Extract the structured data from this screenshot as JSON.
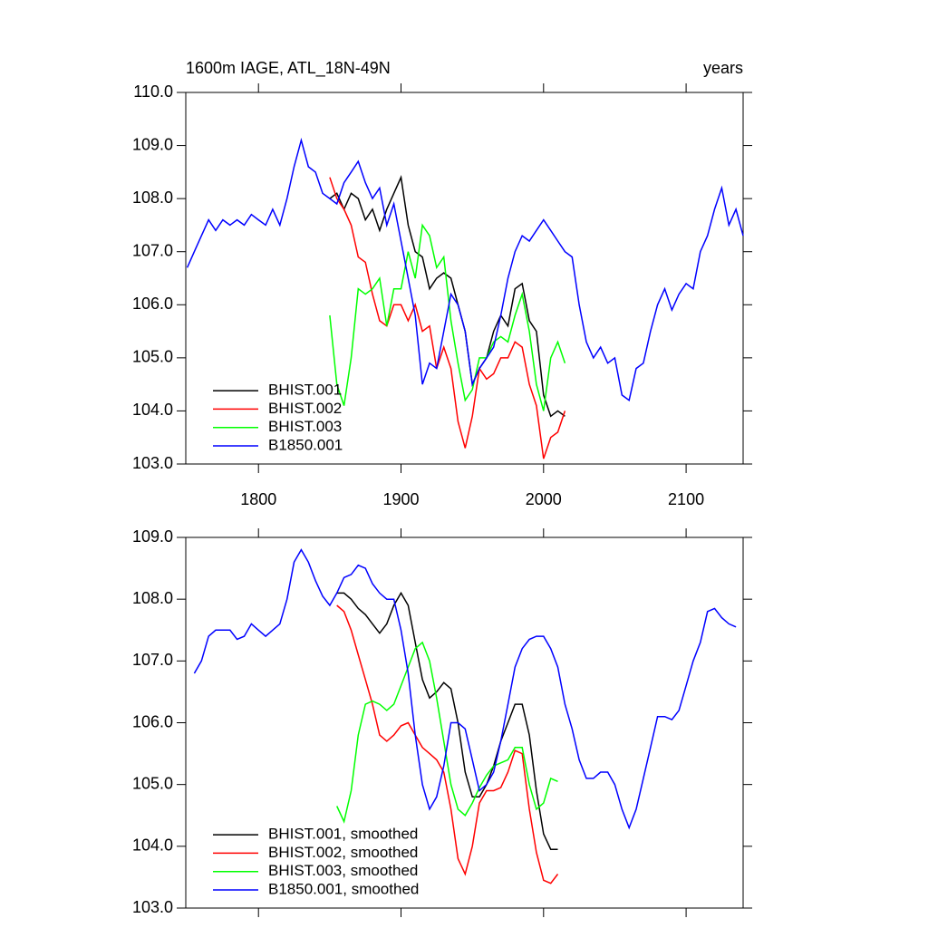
{
  "chart_data": [
    {
      "type": "line",
      "title": "1600m IAGE, ATL_18N-49N",
      "right_title": "years",
      "xlim": [
        1749,
        2140
      ],
      "xticks": [
        1800,
        1900,
        2000,
        2100
      ],
      "show_xtick_labels": true,
      "ylim": [
        103,
        110
      ],
      "yticks": [
        {
          "value": 103,
          "label": "103.0"
        },
        {
          "value": 104,
          "label": "104.0"
        },
        {
          "value": 105,
          "label": "105.0"
        },
        {
          "value": 106,
          "label": "106.0"
        },
        {
          "value": 107,
          "label": "107.0"
        },
        {
          "value": 108,
          "label": "108.0"
        },
        {
          "value": 109,
          "label": "109.0"
        },
        {
          "value": 110,
          "label": "110.0"
        }
      ],
      "legend": "lower left",
      "series": [
        {
          "name": "BHIST.001",
          "color": "#000000",
          "x": [
            1850,
            1855,
            1860,
            1865,
            1870,
            1875,
            1880,
            1885,
            1890,
            1895,
            1900,
            1905,
            1910,
            1915,
            1920,
            1925,
            1930,
            1935,
            1940,
            1945,
            1950,
            1955,
            1960,
            1965,
            1970,
            1975,
            1980,
            1985,
            1990,
            1995,
            2000,
            2005,
            2010,
            2015
          ],
          "values": [
            108.0,
            108.1,
            107.8,
            108.1,
            108.0,
            107.6,
            107.8,
            107.4,
            107.8,
            108.1,
            108.4,
            107.5,
            107.0,
            106.9,
            106.3,
            106.5,
            106.6,
            106.5,
            106.0,
            105.5,
            104.5,
            104.8,
            105.0,
            105.5,
            105.8,
            105.6,
            106.3,
            106.4,
            105.7,
            105.5,
            104.3,
            103.9,
            104.0,
            103.9
          ]
        },
        {
          "name": "BHIST.002",
          "color": "#ff0000",
          "x": [
            1850,
            1855,
            1860,
            1865,
            1870,
            1875,
            1880,
            1885,
            1890,
            1895,
            1900,
            1905,
            1910,
            1915,
            1920,
            1925,
            1930,
            1935,
            1940,
            1945,
            1950,
            1955,
            1960,
            1965,
            1970,
            1975,
            1980,
            1985,
            1990,
            1995,
            2000,
            2005,
            2010,
            2015
          ],
          "values": [
            108.4,
            108.0,
            107.8,
            107.5,
            106.9,
            106.8,
            106.2,
            105.7,
            105.6,
            106.0,
            106.0,
            105.7,
            106.0,
            105.5,
            105.6,
            104.8,
            105.2,
            104.8,
            103.8,
            103.3,
            103.9,
            104.8,
            104.6,
            104.7,
            105.0,
            105.0,
            105.3,
            105.2,
            104.5,
            104.1,
            103.1,
            103.5,
            103.6,
            104.0
          ]
        },
        {
          "name": "BHIST.003",
          "color": "#00ff00",
          "x": [
            1850,
            1855,
            1860,
            1865,
            1870,
            1875,
            1880,
            1885,
            1890,
            1895,
            1900,
            1905,
            1910,
            1915,
            1920,
            1925,
            1930,
            1935,
            1940,
            1945,
            1950,
            1955,
            1960,
            1965,
            1970,
            1975,
            1980,
            1985,
            1990,
            1995,
            2000,
            2005,
            2010,
            2015
          ],
          "values": [
            105.8,
            104.5,
            104.1,
            105.0,
            106.3,
            106.2,
            106.3,
            106.5,
            105.6,
            106.3,
            106.3,
            107.0,
            106.5,
            107.5,
            107.3,
            106.7,
            106.9,
            105.7,
            104.9,
            104.2,
            104.4,
            105.0,
            105.0,
            105.3,
            105.4,
            105.3,
            105.8,
            106.2,
            105.5,
            104.5,
            104.0,
            105.0,
            105.3,
            104.9
          ]
        },
        {
          "name": "B1850.001",
          "color": "#0000ff",
          "x": [
            1750,
            1755,
            1760,
            1765,
            1770,
            1775,
            1780,
            1785,
            1790,
            1795,
            1800,
            1805,
            1810,
            1815,
            1820,
            1825,
            1830,
            1835,
            1840,
            1845,
            1850,
            1855,
            1860,
            1865,
            1870,
            1875,
            1880,
            1885,
            1890,
            1895,
            1900,
            1905,
            1910,
            1915,
            1920,
            1925,
            1930,
            1935,
            1940,
            1945,
            1950,
            1955,
            1960,
            1965,
            1970,
            1975,
            1980,
            1985,
            1990,
            1995,
            2000,
            2005,
            2010,
            2015,
            2020,
            2025,
            2030,
            2035,
            2040,
            2045,
            2050,
            2055,
            2060,
            2065,
            2070,
            2075,
            2080,
            2085,
            2090,
            2095,
            2100,
            2105,
            2110,
            2115,
            2120,
            2125,
            2130,
            2135,
            2140
          ],
          "values": [
            106.7,
            107.0,
            107.3,
            107.6,
            107.4,
            107.6,
            107.5,
            107.6,
            107.5,
            107.7,
            107.6,
            107.5,
            107.8,
            107.5,
            108.0,
            108.6,
            109.1,
            108.6,
            108.5,
            108.1,
            108.0,
            107.9,
            108.3,
            108.5,
            108.7,
            108.3,
            108.0,
            108.2,
            107.5,
            107.9,
            107.2,
            106.5,
            105.8,
            104.5,
            104.9,
            104.8,
            105.5,
            106.2,
            106.0,
            105.5,
            104.5,
            104.8,
            105.0,
            105.2,
            105.8,
            106.5,
            107.0,
            107.3,
            107.2,
            107.4,
            107.6,
            107.4,
            107.2,
            107.0,
            106.9,
            106.0,
            105.3,
            105.0,
            105.2,
            104.9,
            105.0,
            104.3,
            104.2,
            104.8,
            104.9,
            105.5,
            106.0,
            106.3,
            105.9,
            106.2,
            106.4,
            106.3,
            107.0,
            107.3,
            107.8,
            108.2,
            107.5,
            107.8,
            107.3
          ]
        }
      ]
    },
    {
      "type": "line",
      "xlim": [
        1749,
        2140
      ],
      "xticks": [
        1800,
        1900,
        2000,
        2100
      ],
      "show_xtick_labels": false,
      "ylim": [
        103,
        109
      ],
      "yticks": [
        {
          "value": 103,
          "label": "103.0"
        },
        {
          "value": 104,
          "label": "104.0"
        },
        {
          "value": 105,
          "label": "105.0"
        },
        {
          "value": 106,
          "label": "106.0"
        },
        {
          "value": 107,
          "label": "107.0"
        },
        {
          "value": 108,
          "label": "108.0"
        },
        {
          "value": 109,
          "label": "109.0"
        }
      ],
      "legend": "lower left",
      "series": [
        {
          "name": "BHIST.001, smoothed",
          "color": "#000000",
          "x": [
            1855,
            1860,
            1865,
            1870,
            1875,
            1880,
            1885,
            1890,
            1895,
            1900,
            1905,
            1910,
            1915,
            1920,
            1925,
            1930,
            1935,
            1940,
            1945,
            1950,
            1955,
            1960,
            1965,
            1970,
            1975,
            1980,
            1985,
            1990,
            1995,
            2000,
            2005,
            2010
          ],
          "values": [
            108.1,
            108.1,
            108.0,
            107.85,
            107.75,
            107.6,
            107.45,
            107.6,
            107.9,
            108.1,
            107.9,
            107.3,
            106.7,
            106.4,
            106.5,
            106.65,
            106.55,
            106.0,
            105.2,
            104.8,
            104.8,
            105.0,
            105.3,
            105.7,
            106.0,
            106.3,
            106.3,
            105.8,
            104.9,
            104.2,
            103.95,
            103.95
          ]
        },
        {
          "name": "BHIST.002, smoothed",
          "color": "#ff0000",
          "x": [
            1855,
            1860,
            1865,
            1870,
            1875,
            1880,
            1885,
            1890,
            1895,
            1900,
            1905,
            1910,
            1915,
            1920,
            1925,
            1930,
            1935,
            1940,
            1945,
            1950,
            1955,
            1960,
            1965,
            1970,
            1975,
            1980,
            1985,
            1990,
            1995,
            2000,
            2005,
            2010
          ],
          "values": [
            107.9,
            107.8,
            107.5,
            107.1,
            106.7,
            106.3,
            105.8,
            105.7,
            105.8,
            105.95,
            106.0,
            105.8,
            105.6,
            105.5,
            105.4,
            105.2,
            104.6,
            103.8,
            103.55,
            104.0,
            104.7,
            104.9,
            104.9,
            104.95,
            105.2,
            105.55,
            105.5,
            104.6,
            103.9,
            103.45,
            103.4,
            103.55
          ]
        },
        {
          "name": "BHIST.003, smoothed",
          "color": "#00ff00",
          "x": [
            1855,
            1860,
            1865,
            1870,
            1875,
            1880,
            1885,
            1890,
            1895,
            1900,
            1905,
            1910,
            1915,
            1920,
            1925,
            1930,
            1935,
            1940,
            1945,
            1950,
            1955,
            1960,
            1965,
            1970,
            1975,
            1980,
            1985,
            1990,
            1995,
            2000,
            2005,
            2010
          ],
          "values": [
            104.65,
            104.4,
            104.9,
            105.8,
            106.3,
            106.35,
            106.3,
            106.2,
            106.3,
            106.6,
            106.9,
            107.2,
            107.3,
            107.0,
            106.4,
            105.7,
            105.0,
            104.6,
            104.5,
            104.7,
            104.95,
            105.15,
            105.3,
            105.35,
            105.4,
            105.6,
            105.6,
            105.0,
            104.6,
            104.7,
            105.1,
            105.05
          ]
        },
        {
          "name": "B1850.001, smoothed",
          "color": "#0000ff",
          "x": [
            1755,
            1760,
            1765,
            1770,
            1775,
            1780,
            1785,
            1790,
            1795,
            1800,
            1805,
            1810,
            1815,
            1820,
            1825,
            1830,
            1835,
            1840,
            1845,
            1850,
            1855,
            1860,
            1865,
            1870,
            1875,
            1880,
            1885,
            1890,
            1895,
            1900,
            1905,
            1910,
            1915,
            1920,
            1925,
            1930,
            1935,
            1940,
            1945,
            1950,
            1955,
            1960,
            1965,
            1970,
            1975,
            1980,
            1985,
            1990,
            1995,
            2000,
            2005,
            2010,
            2015,
            2020,
            2025,
            2030,
            2035,
            2040,
            2045,
            2050,
            2055,
            2060,
            2065,
            2070,
            2075,
            2080,
            2085,
            2090,
            2095,
            2100,
            2105,
            2110,
            2115,
            2120,
            2125,
            2130,
            2135
          ],
          "values": [
            106.8,
            107.0,
            107.4,
            107.5,
            107.5,
            107.5,
            107.35,
            107.4,
            107.6,
            107.5,
            107.4,
            107.5,
            107.6,
            108.0,
            108.6,
            108.8,
            108.6,
            108.3,
            108.05,
            107.9,
            108.1,
            108.35,
            108.4,
            108.55,
            108.5,
            108.25,
            108.1,
            108.0,
            108.0,
            107.5,
            106.8,
            105.8,
            105.0,
            104.6,
            104.8,
            105.3,
            106.0,
            106.0,
            105.9,
            105.4,
            104.9,
            105.0,
            105.2,
            105.7,
            106.3,
            106.9,
            107.2,
            107.35,
            107.4,
            107.4,
            107.2,
            106.9,
            106.3,
            105.9,
            105.4,
            105.1,
            105.1,
            105.2,
            105.2,
            105.0,
            104.6,
            104.3,
            104.6,
            105.1,
            105.6,
            106.1,
            106.1,
            106.05,
            106.2,
            106.6,
            107.0,
            107.3,
            107.8,
            107.85,
            107.7,
            107.6,
            107.55
          ]
        }
      ]
    }
  ]
}
